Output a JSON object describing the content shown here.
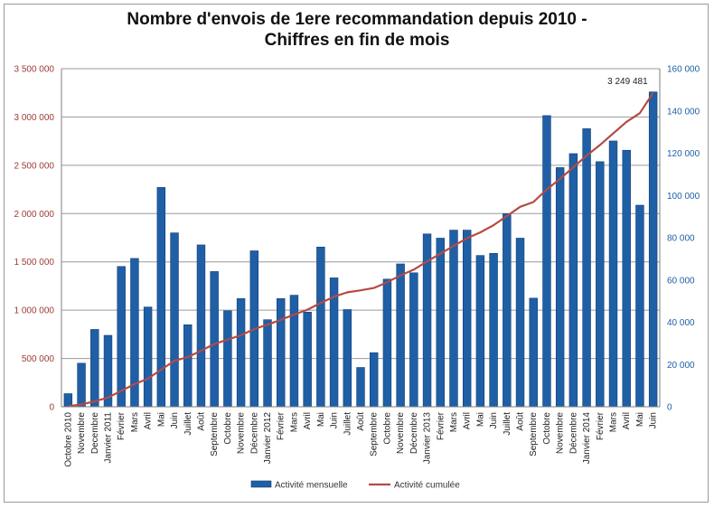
{
  "title_line1": "Nombre d'envois de 1ere recommandation depuis 2010 -",
  "title_line2": "Chiffres en fin de mois",
  "colors": {
    "bar": "#1f5fa6",
    "bar_dark": "#143f73",
    "line": "#b54a44",
    "left_axis_text": "#9c3a35",
    "right_axis_text": "#1f5fa6",
    "grid": "#9a9a9a"
  },
  "chart_data": {
    "type": "bar",
    "categories": [
      "Octobre 2010",
      "Novembre",
      "Decembre",
      "Janvier 2011",
      "Février",
      "Mars",
      "Avril",
      "Mai",
      "Juin",
      "Juillet",
      "Août",
      "Septembre",
      "Octobre",
      "Novembre",
      "Décembre",
      "Janvier 2012",
      "Février",
      "Mars",
      "Avril",
      "Mai",
      "Juin",
      "Juillet",
      "Août",
      "Septembre",
      "Octobre",
      "Novembre",
      "Décembre",
      "Janvier 2013",
      "Février",
      "Mars",
      "Avril",
      "Mai",
      "Juin",
      "Juillet",
      "Août",
      "Septembre",
      "Octobre",
      "Novembre",
      "Décembre",
      "Janvier 2014",
      "Février",
      "Mars",
      "Avril",
      "Mai",
      "Juin"
    ],
    "series": [
      {
        "name": "Activité mensuelle",
        "axis": "right",
        "type": "bar",
        "values": [
          6200,
          20600,
          36600,
          33800,
          66400,
          70200,
          47200,
          103800,
          82300,
          38800,
          76600,
          64000,
          45400,
          51200,
          73800,
          41200,
          51200,
          52800,
          44800,
          75600,
          61000,
          46000,
          18600,
          25600,
          60400,
          67600,
          63400,
          81800,
          79800,
          83600,
          83600,
          71600,
          72600,
          91400,
          79800,
          51400,
          137800,
          113200,
          119800,
          131600,
          116000,
          125800,
          121400,
          95400,
          149000
        ]
      },
      {
        "name": "Activité cumulée",
        "axis": "left",
        "type": "line",
        "values": [
          5000,
          24000,
          56000,
          95000,
          165000,
          235000,
          290000,
          385000,
          475000,
          515000,
          580000,
          650000,
          695000,
          740000,
          805000,
          850000,
          900000,
          955000,
          1005000,
          1075000,
          1140000,
          1185000,
          1205000,
          1230000,
          1290000,
          1360000,
          1420000,
          1505000,
          1585000,
          1665000,
          1745000,
          1805000,
          1880000,
          1975000,
          2070000,
          2120000,
          2250000,
          2360000,
          2480000,
          2600000,
          2710000,
          2830000,
          2950000,
          3040000,
          3249481
        ]
      }
    ],
    "left_axis": {
      "min": 0,
      "max": 3500000,
      "step": 500000,
      "ticks": [
        "0",
        "500 000",
        "1 000 000",
        "1 500 000",
        "2 000 000",
        "2 500 000",
        "3 000 000",
        "3 500 000"
      ]
    },
    "right_axis": {
      "min": 0,
      "max": 160000,
      "step": 20000,
      "ticks": [
        "0",
        "20 000",
        "40 000",
        "60 000",
        "80 000",
        "100 000",
        "120 000",
        "140 000",
        "160 000"
      ]
    },
    "annotation": "3 249 481",
    "grid": true,
    "legend_position": "bottom"
  }
}
